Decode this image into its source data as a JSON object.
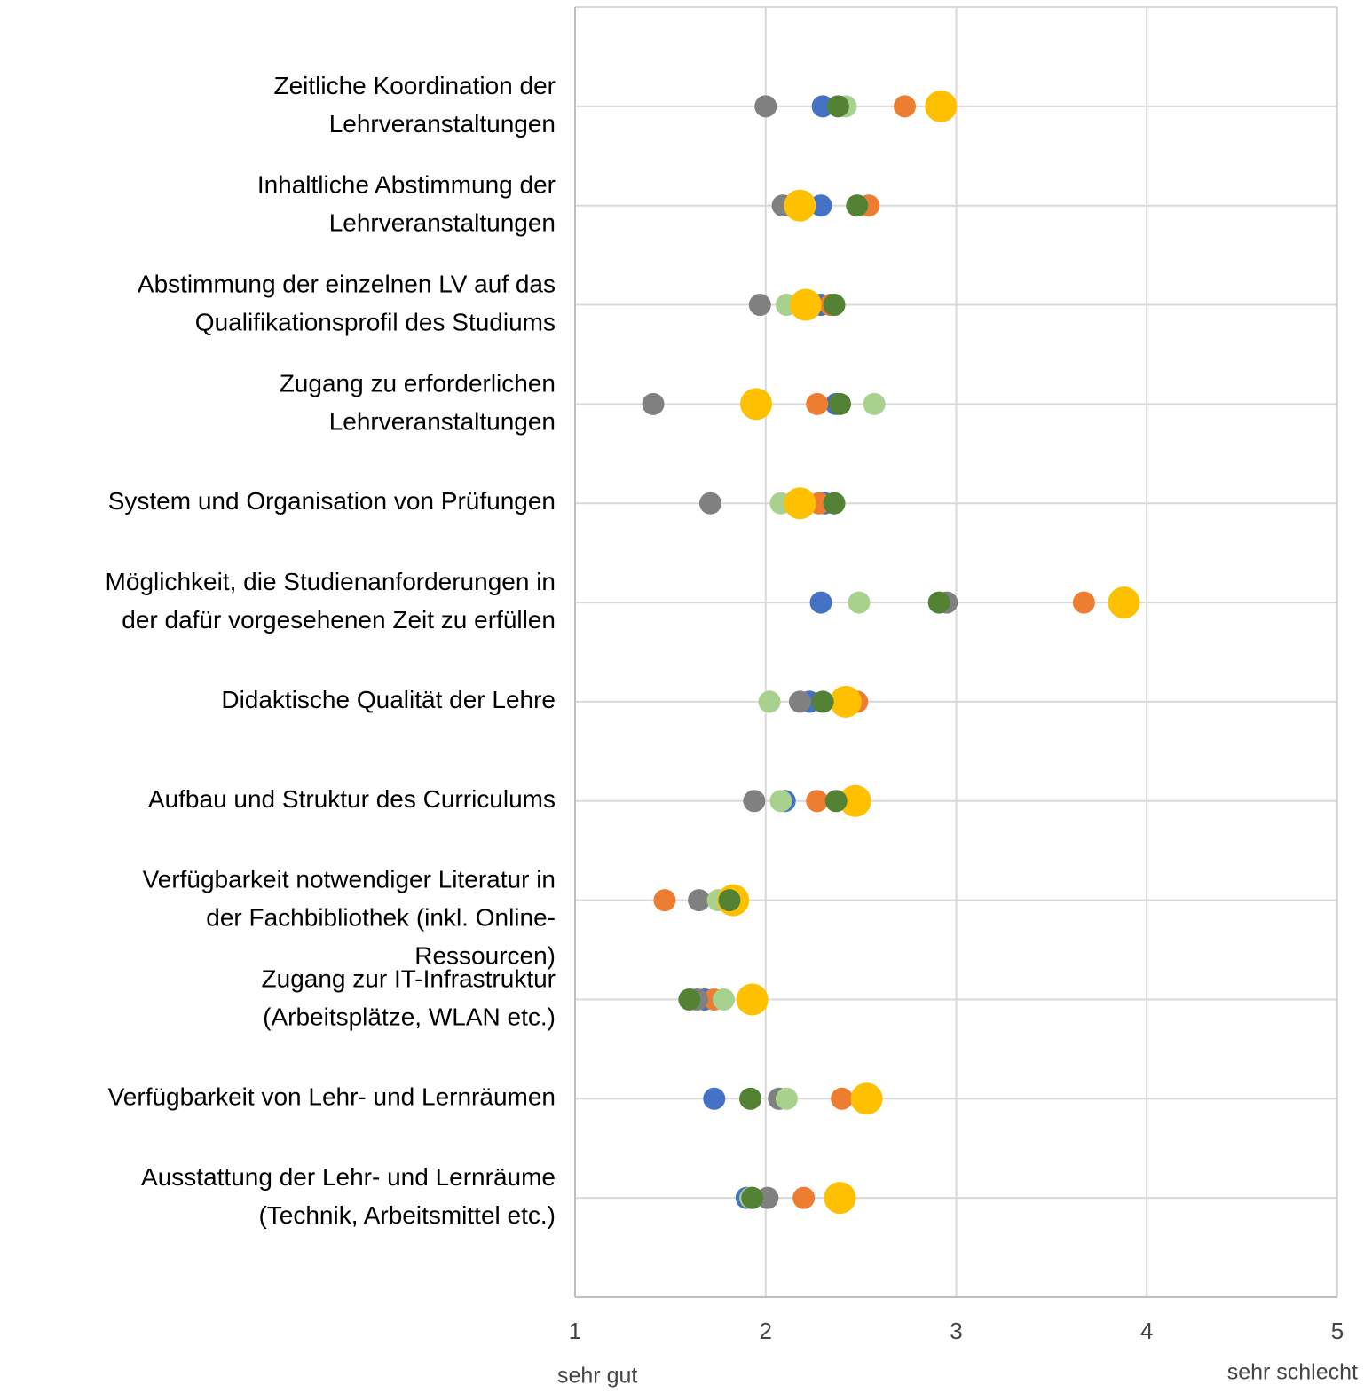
{
  "chart_data": {
    "type": "dot",
    "categories": [
      "Zeitliche Koordination der\nLehrveranstaltungen",
      "Inhaltliche Abstimmung der\nLehrveranstaltungen",
      "Abstimmung der einzelnen LV auf das\nQualifikationsprofil des Studiums",
      "Zugang zu erforderlichen\nLehrveranstaltungen",
      "System und Organisation von Prüfungen",
      "Möglichkeit, die Studienanforderungen in\nder dafür vorgesehenen Zeit zu erfüllen",
      "Didaktische Qualität der Lehre",
      "Aufbau und Struktur des Curriculums",
      "Verfügbarkeit notwendiger Literatur in\nder Fachbibliothek (inkl. Online-\nRessourcen)",
      "Zugang zur IT-Infrastruktur\n(Arbeitsplätze, WLAN etc.)",
      "Verfügbarkeit von Lehr- und Lernräumen",
      "Ausstattung der Lehr- und Lernräume\n(Technik, Arbeitsmittel etc.)"
    ],
    "series": [
      {
        "color": "#4472c4",
        "values": [
          2.3,
          2.29,
          2.29,
          2.37,
          2.31,
          2.29,
          2.23,
          2.1,
          1.8,
          1.68,
          1.73,
          1.9
        ]
      },
      {
        "color": "#ed7d31",
        "values": [
          2.73,
          2.54,
          2.34,
          2.27,
          2.28,
          3.67,
          2.48,
          2.27,
          1.47,
          1.73,
          2.4,
          2.2
        ]
      },
      {
        "color": "#808080",
        "values": [
          2.0,
          2.09,
          1.97,
          1.41,
          1.71,
          2.95,
          2.18,
          1.94,
          1.65,
          1.64,
          2.07,
          2.01
        ]
      },
      {
        "color": "#a9d18e",
        "values": [
          2.42,
          2.48,
          2.11,
          2.57,
          2.08,
          2.49,
          2.02,
          2.08,
          1.75,
          1.78,
          2.11,
          1.92
        ]
      },
      {
        "color": "#ffc000",
        "values": [
          2.92,
          2.18,
          2.21,
          1.95,
          2.18,
          3.88,
          2.42,
          2.47,
          1.83,
          1.93,
          2.53,
          2.39
        ]
      },
      {
        "color": "#548235",
        "values": [
          2.38,
          2.48,
          2.36,
          2.39,
          2.36,
          2.91,
          2.3,
          2.37,
          1.81,
          1.6,
          1.92,
          1.93
        ]
      }
    ],
    "xlim": [
      1,
      5
    ],
    "xticks": [
      1,
      2,
      3,
      4,
      5
    ],
    "grid": true,
    "x_min_label": "sehr gut",
    "x_max_label": "sehr schlecht"
  }
}
